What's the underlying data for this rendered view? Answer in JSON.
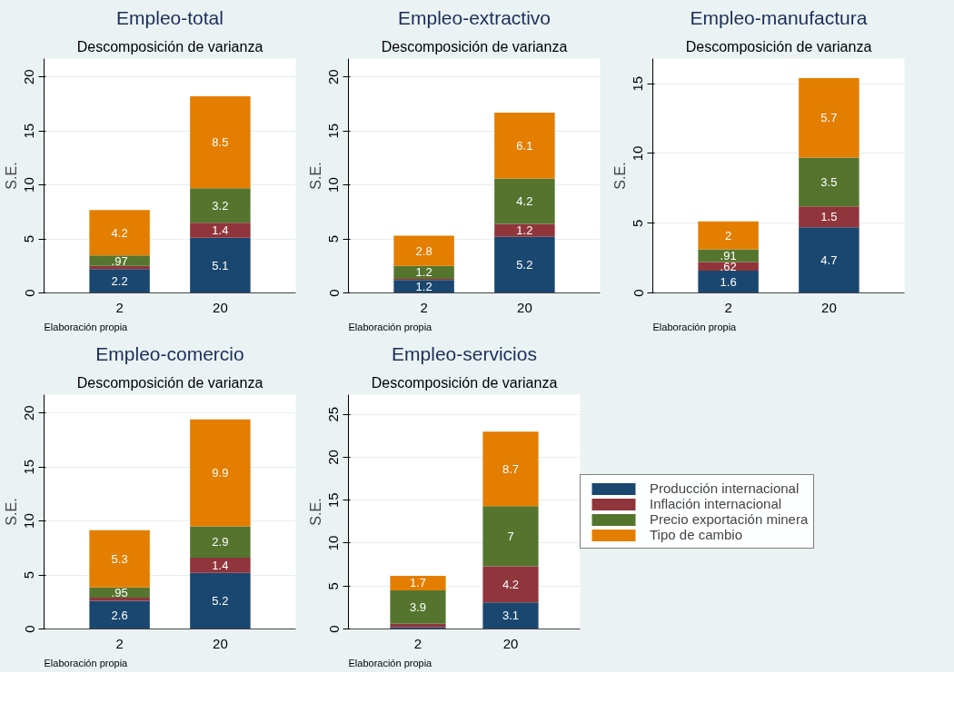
{
  "chart_data": [
    {
      "type": "bar",
      "stacked": true,
      "title": "Empleo-total",
      "subtitle": "Descomposición de varianza",
      "ylabel": "S.E.",
      "categories": [
        "2",
        "20"
      ],
      "ylim": [
        0,
        21.7
      ],
      "yticks": [
        0,
        5,
        10,
        15,
        20
      ],
      "grid": "y",
      "annotations": [
        "Elaboración propia"
      ],
      "series": [
        {
          "color": "#1a476f",
          "values": [
            2.2,
            5.1
          ],
          "value_labels": [
            "2.2",
            "5.1"
          ]
        },
        {
          "color": "#90353b",
          "values": [
            0.3,
            1.4
          ],
          "value_labels": [
            null,
            "1.4"
          ]
        },
        {
          "color": "#55752f",
          "values": [
            0.97,
            3.2
          ],
          "value_labels": [
            ".97",
            "3.2"
          ]
        },
        {
          "color": "#e37e00",
          "values": [
            4.2,
            8.5
          ],
          "value_labels": [
            "4.2",
            "8.5"
          ]
        }
      ]
    },
    {
      "type": "bar",
      "stacked": true,
      "title": "Empleo-extractivo",
      "subtitle": "Descomposición de varianza",
      "ylabel": "S.E.",
      "categories": [
        "2",
        "20"
      ],
      "ylim": [
        0,
        21.7
      ],
      "yticks": [
        0,
        5,
        10,
        15,
        20
      ],
      "grid": "y",
      "annotations": [
        "Elaboración propia"
      ],
      "series": [
        {
          "color": "#1a476f",
          "values": [
            1.2,
            5.2
          ],
          "value_labels": [
            "1.2",
            "5.2"
          ]
        },
        {
          "color": "#90353b",
          "values": [
            0.1,
            1.2
          ],
          "value_labels": [
            null,
            "1.2"
          ]
        },
        {
          "color": "#55752f",
          "values": [
            1.2,
            4.2
          ],
          "value_labels": [
            "1.2",
            "4.2"
          ]
        },
        {
          "color": "#e37e00",
          "values": [
            2.8,
            6.1
          ],
          "value_labels": [
            "2.8",
            "6.1"
          ]
        }
      ]
    },
    {
      "type": "bar",
      "stacked": true,
      "title": "Empleo-manufactura",
      "subtitle": "Descomposición de varianza",
      "ylabel": "S.E.",
      "categories": [
        "2",
        "20"
      ],
      "ylim": [
        0,
        16.8
      ],
      "yticks": [
        0,
        5,
        10,
        15
      ],
      "grid": "y",
      "annotations": [
        "Elaboración propia"
      ],
      "series": [
        {
          "color": "#1a476f",
          "values": [
            1.6,
            4.7
          ],
          "value_labels": [
            "1.6",
            "4.7"
          ]
        },
        {
          "color": "#90353b",
          "values": [
            0.62,
            1.5
          ],
          "value_labels": [
            ".62",
            "1.5"
          ]
        },
        {
          "color": "#55752f",
          "values": [
            0.91,
            3.5
          ],
          "value_labels": [
            ".91",
            "3.5"
          ]
        },
        {
          "color": "#e37e00",
          "values": [
            2,
            5.7
          ],
          "value_labels": [
            "2",
            "5.7"
          ]
        }
      ]
    },
    {
      "type": "bar",
      "stacked": true,
      "title": "Empleo-comercio",
      "subtitle": "Descomposición de varianza",
      "ylabel": "S.E.",
      "categories": [
        "2",
        "20"
      ],
      "ylim": [
        0,
        21.7
      ],
      "yticks": [
        0,
        5,
        10,
        15,
        20
      ],
      "grid": "y",
      "annotations": [
        "Elaboración propia"
      ],
      "series": [
        {
          "color": "#1a476f",
          "values": [
            2.6,
            5.2
          ],
          "value_labels": [
            "2.6",
            "5.2"
          ]
        },
        {
          "color": "#90353b",
          "values": [
            0.3,
            1.4
          ],
          "value_labels": [
            null,
            "1.4"
          ]
        },
        {
          "color": "#55752f",
          "values": [
            0.95,
            2.9
          ],
          "value_labels": [
            ".95",
            "2.9"
          ]
        },
        {
          "color": "#e37e00",
          "values": [
            5.3,
            9.9
          ],
          "value_labels": [
            "5.3",
            "9.9"
          ]
        }
      ]
    },
    {
      "type": "bar",
      "stacked": true,
      "title": "Empleo-servicios",
      "subtitle": "Descomposición de varianza",
      "ylabel": "S.E.",
      "categories": [
        "2",
        "20"
      ],
      "ylim": [
        0,
        27.3
      ],
      "yticks": [
        0,
        5,
        10,
        15,
        20,
        25
      ],
      "grid": "y",
      "annotations": [
        "Elaboración propia"
      ],
      "legend": "right",
      "series": [
        {
          "name": "Producción internacional",
          "color": "#1a476f",
          "values": [
            0.2,
            3.1
          ],
          "value_labels": [
            null,
            "3.1"
          ]
        },
        {
          "name": "Inflación internacional",
          "color": "#90353b",
          "values": [
            0.4,
            4.2
          ],
          "value_labels": [
            null,
            "4.2"
          ]
        },
        {
          "name": "Precio exportación minera",
          "color": "#55752f",
          "values": [
            3.9,
            7
          ],
          "value_labels": [
            "3.9",
            "7"
          ]
        },
        {
          "name": "Tipo de cambio",
          "color": "#e37e00",
          "values": [
            1.7,
            8.7
          ],
          "value_labels": [
            "1.7",
            "8.7"
          ]
        }
      ]
    }
  ]
}
